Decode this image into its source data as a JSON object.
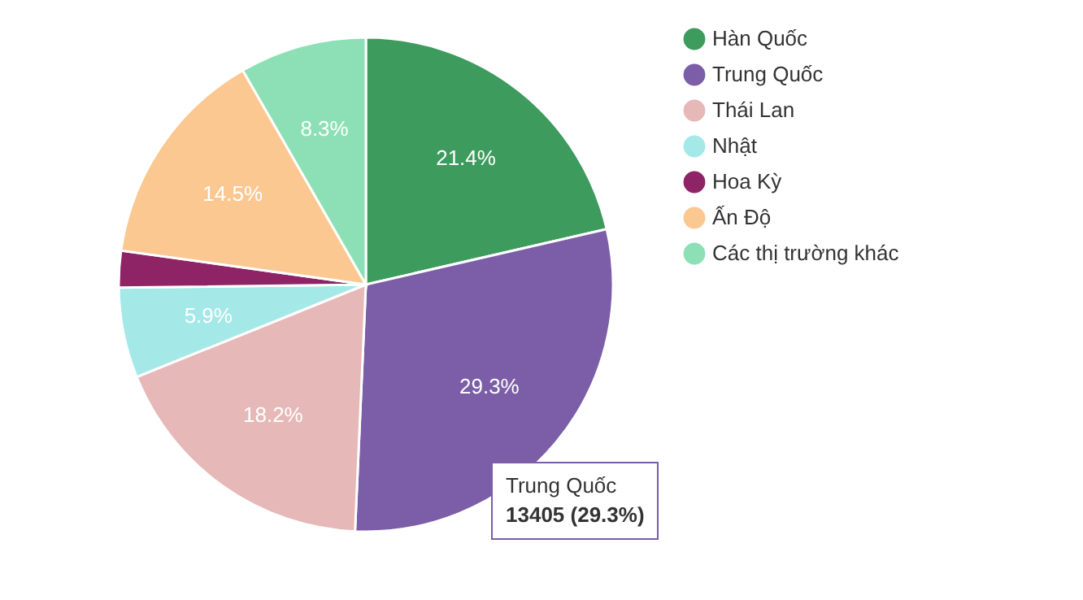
{
  "chart_data": {
    "type": "pie",
    "categories": [
      "Hàn Quốc",
      "Trung Quốc",
      "Thái Lan",
      "Nhật",
      "Hoa Kỳ",
      "Ấn Độ",
      "Các thị trường khác"
    ],
    "values": [
      21.4,
      29.3,
      18.2,
      5.9,
      2.4,
      14.5,
      8.3
    ],
    "colors": [
      "#3d9b5e",
      "#7b5ea7",
      "#e6b8b7",
      "#a5e8e8",
      "#8e2366",
      "#fbc892",
      "#8de0b5"
    ],
    "value_labels": [
      "21.4%",
      "29.3%",
      "18.2%",
      "5.9%",
      null,
      "14.5%",
      "8.3%"
    ],
    "legend": "top right",
    "annotations": [
      "Trung Quốc",
      "13405 (29.3%)"
    ]
  }
}
